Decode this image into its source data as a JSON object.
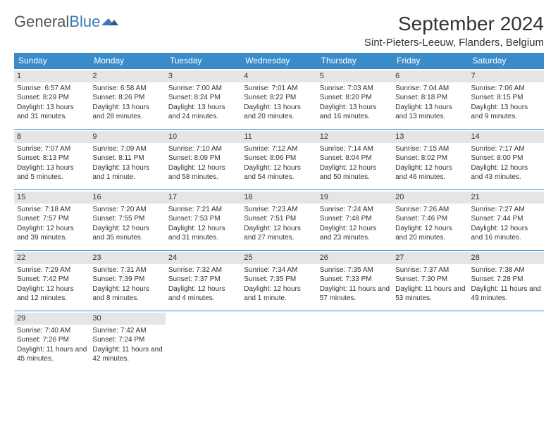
{
  "logo": {
    "text1": "General",
    "text2": "Blue"
  },
  "title": "September 2024",
  "location": "Sint-Pieters-Leeuw, Flanders, Belgium",
  "colors": {
    "header_bg": "#3a8bc9",
    "header_text": "#ffffff",
    "daynum_bg": "#e5e5e5",
    "border": "#3a8bc9",
    "logo_blue": "#3a7ab8",
    "text": "#333333"
  },
  "weekdays": [
    "Sunday",
    "Monday",
    "Tuesday",
    "Wednesday",
    "Thursday",
    "Friday",
    "Saturday"
  ],
  "weeks": [
    [
      {
        "num": "1",
        "sunrise": "Sunrise: 6:57 AM",
        "sunset": "Sunset: 8:29 PM",
        "daylight": "Daylight: 13 hours and 31 minutes."
      },
      {
        "num": "2",
        "sunrise": "Sunrise: 6:58 AM",
        "sunset": "Sunset: 8:26 PM",
        "daylight": "Daylight: 13 hours and 28 minutes."
      },
      {
        "num": "3",
        "sunrise": "Sunrise: 7:00 AM",
        "sunset": "Sunset: 8:24 PM",
        "daylight": "Daylight: 13 hours and 24 minutes."
      },
      {
        "num": "4",
        "sunrise": "Sunrise: 7:01 AM",
        "sunset": "Sunset: 8:22 PM",
        "daylight": "Daylight: 13 hours and 20 minutes."
      },
      {
        "num": "5",
        "sunrise": "Sunrise: 7:03 AM",
        "sunset": "Sunset: 8:20 PM",
        "daylight": "Daylight: 13 hours and 16 minutes."
      },
      {
        "num": "6",
        "sunrise": "Sunrise: 7:04 AM",
        "sunset": "Sunset: 8:18 PM",
        "daylight": "Daylight: 13 hours and 13 minutes."
      },
      {
        "num": "7",
        "sunrise": "Sunrise: 7:06 AM",
        "sunset": "Sunset: 8:15 PM",
        "daylight": "Daylight: 13 hours and 9 minutes."
      }
    ],
    [
      {
        "num": "8",
        "sunrise": "Sunrise: 7:07 AM",
        "sunset": "Sunset: 8:13 PM",
        "daylight": "Daylight: 13 hours and 5 minutes."
      },
      {
        "num": "9",
        "sunrise": "Sunrise: 7:09 AM",
        "sunset": "Sunset: 8:11 PM",
        "daylight": "Daylight: 13 hours and 1 minute."
      },
      {
        "num": "10",
        "sunrise": "Sunrise: 7:10 AM",
        "sunset": "Sunset: 8:09 PM",
        "daylight": "Daylight: 12 hours and 58 minutes."
      },
      {
        "num": "11",
        "sunrise": "Sunrise: 7:12 AM",
        "sunset": "Sunset: 8:06 PM",
        "daylight": "Daylight: 12 hours and 54 minutes."
      },
      {
        "num": "12",
        "sunrise": "Sunrise: 7:14 AM",
        "sunset": "Sunset: 8:04 PM",
        "daylight": "Daylight: 12 hours and 50 minutes."
      },
      {
        "num": "13",
        "sunrise": "Sunrise: 7:15 AM",
        "sunset": "Sunset: 8:02 PM",
        "daylight": "Daylight: 12 hours and 46 minutes."
      },
      {
        "num": "14",
        "sunrise": "Sunrise: 7:17 AM",
        "sunset": "Sunset: 8:00 PM",
        "daylight": "Daylight: 12 hours and 43 minutes."
      }
    ],
    [
      {
        "num": "15",
        "sunrise": "Sunrise: 7:18 AM",
        "sunset": "Sunset: 7:57 PM",
        "daylight": "Daylight: 12 hours and 39 minutes."
      },
      {
        "num": "16",
        "sunrise": "Sunrise: 7:20 AM",
        "sunset": "Sunset: 7:55 PM",
        "daylight": "Daylight: 12 hours and 35 minutes."
      },
      {
        "num": "17",
        "sunrise": "Sunrise: 7:21 AM",
        "sunset": "Sunset: 7:53 PM",
        "daylight": "Daylight: 12 hours and 31 minutes."
      },
      {
        "num": "18",
        "sunrise": "Sunrise: 7:23 AM",
        "sunset": "Sunset: 7:51 PM",
        "daylight": "Daylight: 12 hours and 27 minutes."
      },
      {
        "num": "19",
        "sunrise": "Sunrise: 7:24 AM",
        "sunset": "Sunset: 7:48 PM",
        "daylight": "Daylight: 12 hours and 23 minutes."
      },
      {
        "num": "20",
        "sunrise": "Sunrise: 7:26 AM",
        "sunset": "Sunset: 7:46 PM",
        "daylight": "Daylight: 12 hours and 20 minutes."
      },
      {
        "num": "21",
        "sunrise": "Sunrise: 7:27 AM",
        "sunset": "Sunset: 7:44 PM",
        "daylight": "Daylight: 12 hours and 16 minutes."
      }
    ],
    [
      {
        "num": "22",
        "sunrise": "Sunrise: 7:29 AM",
        "sunset": "Sunset: 7:42 PM",
        "daylight": "Daylight: 12 hours and 12 minutes."
      },
      {
        "num": "23",
        "sunrise": "Sunrise: 7:31 AM",
        "sunset": "Sunset: 7:39 PM",
        "daylight": "Daylight: 12 hours and 8 minutes."
      },
      {
        "num": "24",
        "sunrise": "Sunrise: 7:32 AM",
        "sunset": "Sunset: 7:37 PM",
        "daylight": "Daylight: 12 hours and 4 minutes."
      },
      {
        "num": "25",
        "sunrise": "Sunrise: 7:34 AM",
        "sunset": "Sunset: 7:35 PM",
        "daylight": "Daylight: 12 hours and 1 minute."
      },
      {
        "num": "26",
        "sunrise": "Sunrise: 7:35 AM",
        "sunset": "Sunset: 7:33 PM",
        "daylight": "Daylight: 11 hours and 57 minutes."
      },
      {
        "num": "27",
        "sunrise": "Sunrise: 7:37 AM",
        "sunset": "Sunset: 7:30 PM",
        "daylight": "Daylight: 11 hours and 53 minutes."
      },
      {
        "num": "28",
        "sunrise": "Sunrise: 7:38 AM",
        "sunset": "Sunset: 7:28 PM",
        "daylight": "Daylight: 11 hours and 49 minutes."
      }
    ],
    [
      {
        "num": "29",
        "sunrise": "Sunrise: 7:40 AM",
        "sunset": "Sunset: 7:26 PM",
        "daylight": "Daylight: 11 hours and 45 minutes."
      },
      {
        "num": "30",
        "sunrise": "Sunrise: 7:42 AM",
        "sunset": "Sunset: 7:24 PM",
        "daylight": "Daylight: 11 hours and 42 minutes."
      },
      null,
      null,
      null,
      null,
      null
    ]
  ]
}
